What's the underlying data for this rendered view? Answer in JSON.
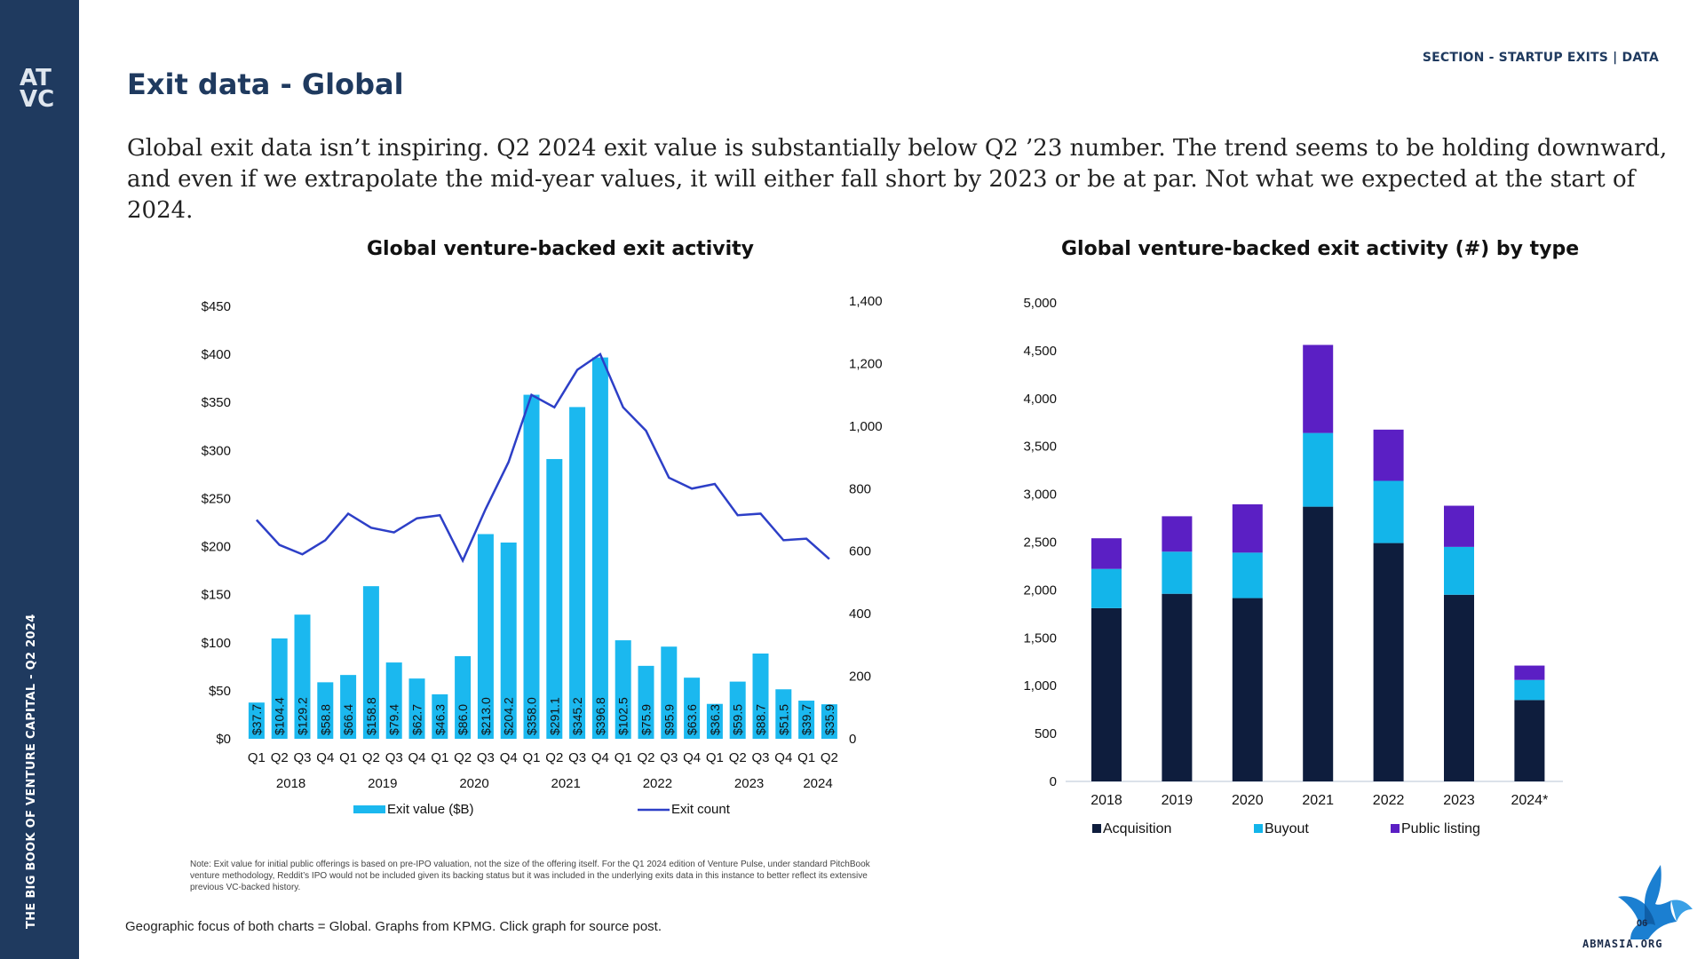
{
  "sidebar": {
    "logo_line1": "AT",
    "logo_line2": "VC",
    "vertical_text": "THE BIG BOOK OF VENTURE CAPITAL - Q2 2024"
  },
  "header": {
    "section_label": "SECTION - STARTUP EXITS | DATA",
    "title": "Exit data - Global",
    "intro": "Global exit data isn’t inspiring. Q2 2024 exit value is substantially below Q2 ’23 number. The trend seems to be holding downward, and even if we extrapolate the mid-year values, it will either fall short by 2023 or be at par. Not what we expected at the start of 2024."
  },
  "colors": {
    "brand_navy": "#1f3a5f",
    "exit_value_bar": "#1bb8ef",
    "exit_count_line": "#2d3fc7",
    "acquisition": "#0e1d3d",
    "buyout": "#13b5ea",
    "public_listing": "#5b1fc4"
  },
  "note": "Note: Exit value for initial public offerings is based on pre-IPO valuation, not the size of the offering itself. For the Q1 2024 edition of Venture Pulse, under standard PitchBook venture methodology, Reddit’s IPO would not be included given its backing status but it was included in the underlying exits data in this instance to better reflect its extensive previous VC-backed history.",
  "footer": "Geographic focus of both charts = Global. Graphs from KPMG. Click graph for source post.",
  "brand_text": "ABMASIA.ORG",
  "brand_badge": "06",
  "chart_data": [
    {
      "type": "bar",
      "title": "Global venture-backed exit activity",
      "quarters": [
        "Q1",
        "Q2",
        "Q3",
        "Q4",
        "Q1",
        "Q2",
        "Q3",
        "Q4",
        "Q1",
        "Q2",
        "Q3",
        "Q4",
        "Q1",
        "Q2",
        "Q3",
        "Q4",
        "Q1",
        "Q2",
        "Q3",
        "Q4",
        "Q1",
        "Q2",
        "Q3",
        "Q4",
        "Q1",
        "Q2"
      ],
      "years": [
        {
          "label": "2018",
          "span": 4
        },
        {
          "label": "2019",
          "span": 4
        },
        {
          "label": "2020",
          "span": 4
        },
        {
          "label": "2021",
          "span": 4
        },
        {
          "label": "2022",
          "span": 4
        },
        {
          "label": "2023",
          "span": 4
        },
        {
          "label": "2024",
          "span": 2
        }
      ],
      "series": [
        {
          "name": "Exit value ($B)",
          "kind": "bar",
          "axis": "left",
          "values": [
            37.7,
            104.4,
            129.2,
            58.8,
            66.4,
            158.8,
            79.4,
            62.7,
            46.3,
            86.0,
            213.0,
            204.2,
            358.0,
            291.1,
            345.2,
            396.8,
            102.5,
            75.9,
            95.9,
            63.6,
            36.3,
            59.5,
            88.7,
            51.5,
            39.7,
            35.9
          ],
          "labels": [
            "$37.7",
            "$104.4",
            "$129.2",
            "$58.8",
            "$66.4",
            "$158.8",
            "$79.4",
            "$62.7",
            "$46.3",
            "$86.0",
            "$213.0",
            "$204.2",
            "$358.0",
            "$291.1",
            "$345.2",
            "$396.8",
            "$102.5",
            "$75.9",
            "$95.9",
            "$63.6",
            "$36.3",
            "$59.5",
            "$88.7",
            "$51.5",
            "$39.7",
            "$35.9"
          ]
        },
        {
          "name": "Exit count",
          "kind": "line",
          "axis": "right",
          "values": [
            700,
            620,
            590,
            635,
            720,
            675,
            660,
            705,
            715,
            570,
            735,
            885,
            1100,
            1060,
            1180,
            1230,
            1060,
            985,
            835,
            800,
            815,
            715,
            720,
            635,
            640,
            575
          ]
        }
      ],
      "y_left": {
        "lim": [
          0,
          450
        ],
        "ticks": [
          "$0",
          "$50",
          "$100",
          "$150",
          "$200",
          "$250",
          "$300",
          "$350",
          "$400",
          "$450"
        ]
      },
      "y_right": {
        "lim": [
          0,
          1400
        ],
        "ticks": [
          "0",
          "200",
          "400",
          "600",
          "800",
          "1,000",
          "1,200",
          "1,400"
        ]
      },
      "legend_position": "bottom",
      "grid": false
    },
    {
      "type": "bar",
      "stacked": true,
      "title": "Global venture-backed exit activity (#) by type",
      "categories": [
        "2018",
        "2019",
        "2020",
        "2021",
        "2022",
        "2023",
        "2024*"
      ],
      "series": [
        {
          "name": "Acquisition",
          "values": [
            1810,
            1960,
            1915,
            2870,
            2490,
            1950,
            850
          ]
        },
        {
          "name": "Buyout",
          "values": [
            410,
            440,
            475,
            770,
            650,
            500,
            210
          ]
        },
        {
          "name": "Public listing",
          "values": [
            320,
            370,
            505,
            920,
            535,
            430,
            150
          ]
        }
      ],
      "ylim": [
        0,
        5000
      ],
      "y_ticks": [
        "0",
        "500",
        "1,000",
        "1,500",
        "2,000",
        "2,500",
        "3,000",
        "3,500",
        "4,000",
        "4,500",
        "5,000"
      ],
      "legend_position": "bottom",
      "grid": false
    }
  ]
}
